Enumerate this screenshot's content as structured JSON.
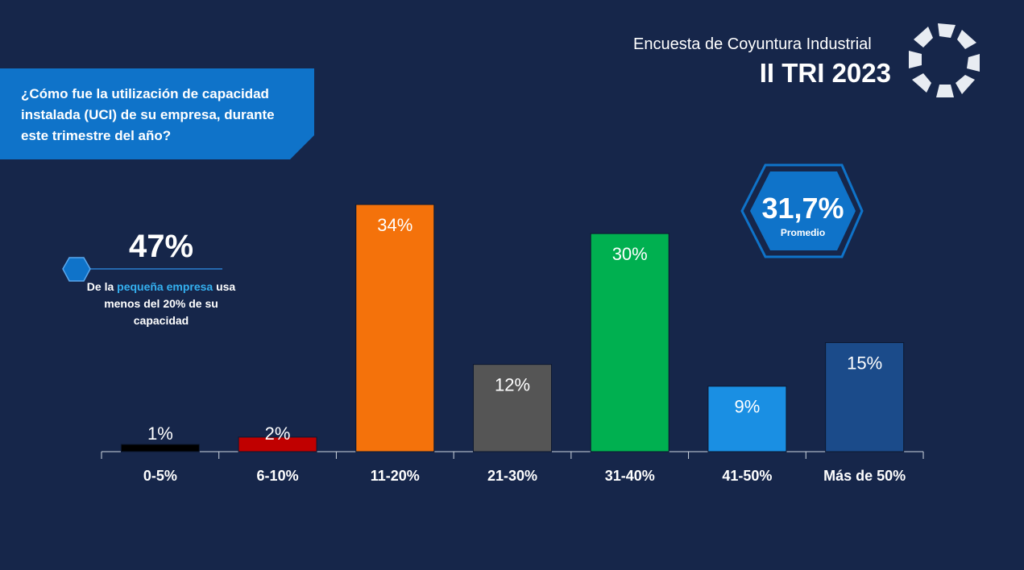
{
  "header": {
    "survey": "Encuesta de Coyuntura Industrial",
    "period": "II TRI 2023"
  },
  "chart_data": {
    "type": "bar",
    "title": "¿Cómo fue la utilización de capacidad instalada (UCI) de su empresa, durante este trimestre del año?",
    "categories": [
      "0-5%",
      "6-10%",
      "11-20%",
      "21-30%",
      "31-40%",
      "41-50%",
      "Más de 50%"
    ],
    "values": [
      1,
      2,
      34,
      12,
      30,
      9,
      15
    ],
    "value_labels": [
      "1%",
      "2%",
      "34%",
      "12%",
      "30%",
      "9%",
      "15%"
    ],
    "colors": [
      "#000000",
      "#c00000",
      "#f4720b",
      "#555555",
      "#00b050",
      "#1a8fe3",
      "#1b4b8a"
    ]
  },
  "callout": {
    "value": "47%",
    "prefix": "De la",
    "highlight": "pequeña empresa",
    "rest": "usa menos del 20% de su capacidad"
  },
  "average": {
    "value": "31,7%",
    "label": "Promedio"
  }
}
